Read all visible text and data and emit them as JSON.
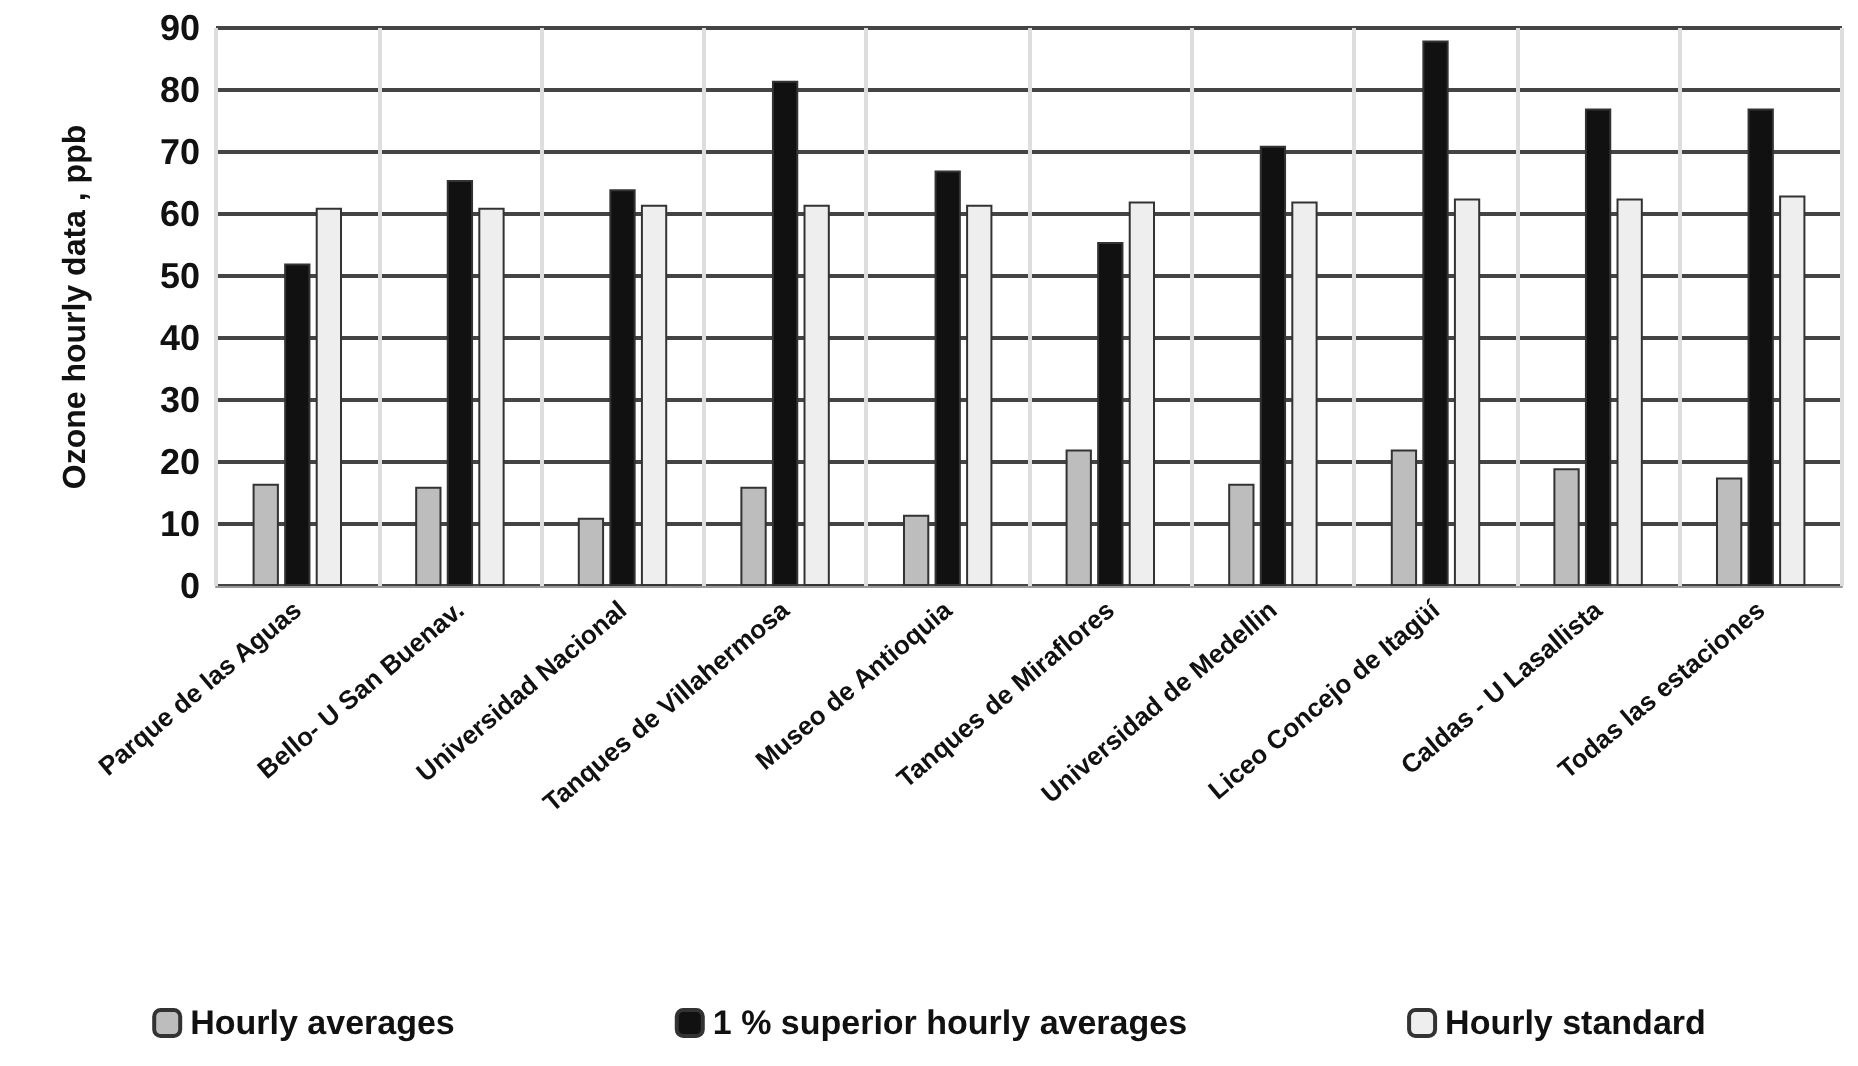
{
  "chart_data": {
    "type": "bar",
    "ylabel": "Ozone hourly data , ppb",
    "categories": [
      "Parque de las Aguas",
      "Bello- U San Buenav.",
      "Universidad Nacional",
      "Tanques de Villahermosa",
      "Museo de Antioquia",
      "Tanques de Miraflores",
      "Universidad de Medellin",
      "Liceo Concejo de Itagüí",
      "Caldas - U Lasallista",
      "Todas las estaciones"
    ],
    "series": [
      {
        "name": "Hourly averages",
        "color": "#bdbdbd",
        "values": [
          16.5,
          16,
          11,
          16,
          11.5,
          22,
          16.5,
          22,
          19,
          17.5
        ]
      },
      {
        "name": "1 % superior hourly averages",
        "color": "#111111",
        "values": [
          52,
          65.5,
          64,
          81.5,
          67,
          55.5,
          71,
          88,
          77,
          77
        ]
      },
      {
        "name": "Hourly standard",
        "color": "#eeeeee",
        "values": [
          61,
          61,
          61.5,
          61.5,
          61.5,
          62,
          62,
          62.5,
          62.5,
          63
        ]
      }
    ],
    "ylim": [
      0,
      90
    ],
    "yticks": [
      0,
      10,
      20,
      30,
      40,
      50,
      60,
      70,
      80,
      90
    ],
    "grid": true,
    "legend": "bottom"
  }
}
